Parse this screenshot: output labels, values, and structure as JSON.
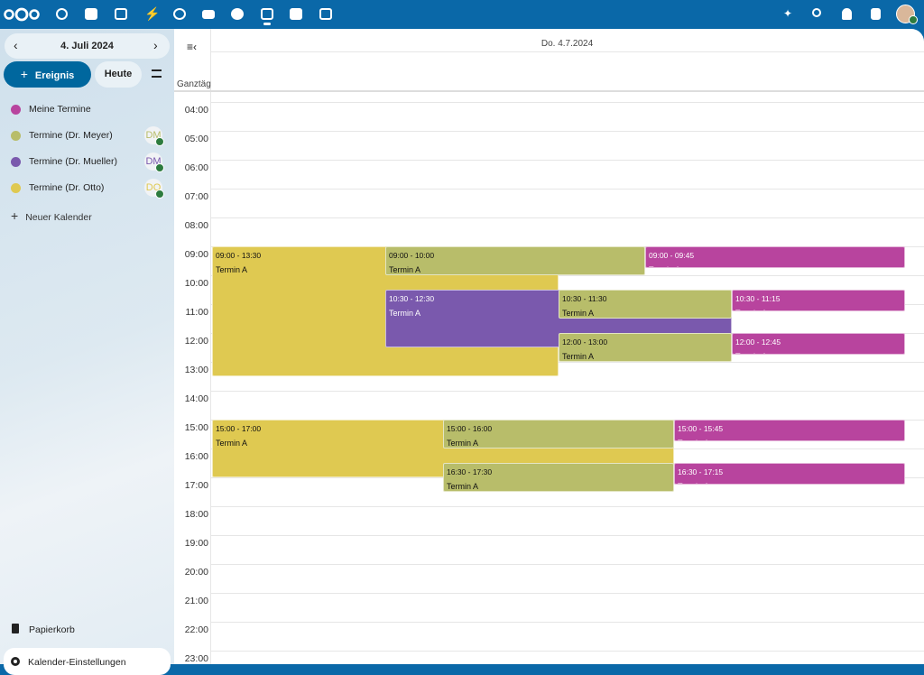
{
  "sidebar": {
    "date": "4. Juli 2024",
    "new_event": "Ereignis",
    "today": "Heute",
    "calendars": [
      {
        "name": "Meine Termine",
        "color": "#b8449e"
      },
      {
        "name": "Termine (Dr. Meyer)",
        "color": "#b8bd6a",
        "avatar": "DM"
      },
      {
        "name": "Termine (Dr. Mueller)",
        "color": "#7a59ad",
        "avatar": "DM"
      },
      {
        "name": "Termine (Dr. Otto)",
        "color": "#dfc951",
        "avatar": "DO"
      }
    ],
    "new_calendar": "Neuer Kalender",
    "trash": "Papierkorb",
    "settings": "Kalender-Einstellungen"
  },
  "grid": {
    "day_header": "Do. 4.7.2024",
    "all_day": "Ganztäg",
    "hours": [
      "04:00",
      "05:00",
      "06:00",
      "07:00",
      "08:00",
      "09:00",
      "10:00",
      "11:00",
      "12:00",
      "13:00",
      "14:00",
      "15:00",
      "16:00",
      "17:00",
      "18:00",
      "19:00",
      "20:00",
      "21:00",
      "22:00",
      "23:00"
    ]
  },
  "events": [
    {
      "time": "09:00 - 13:30",
      "title": "Termin A",
      "color": "#dfc951"
    },
    {
      "time": "09:00 - 10:00",
      "title": "Termin A",
      "color": "#b8bd6a"
    },
    {
      "time": "09:00 - 09:45",
      "title": "Termin A",
      "color": "#b8449e"
    },
    {
      "time": "10:30 - 12:30",
      "title": "Termin A",
      "color": "#7a59ad"
    },
    {
      "time": "10:30 - 11:30",
      "title": "Termin A",
      "color": "#b8bd6a"
    },
    {
      "time": "10:30 - 11:15",
      "title": "Termin A",
      "color": "#b8449e"
    },
    {
      "time": "12:00 - 13:00",
      "title": "Termin A",
      "color": "#b8bd6a"
    },
    {
      "time": "12:00 - 12:45",
      "title": "Termin A",
      "color": "#b8449e"
    },
    {
      "time": "15:00 - 17:00",
      "title": "Termin A",
      "color": "#dfc951"
    },
    {
      "time": "15:00 - 16:00",
      "title": "Termin A",
      "color": "#b8bd6a"
    },
    {
      "time": "15:00 - 15:45",
      "title": "Termin A",
      "color": "#b8449e"
    },
    {
      "time": "16:30 - 17:30",
      "title": "Termin A",
      "color": "#b8bd6a"
    },
    {
      "time": "16:30 - 17:15",
      "title": "Termin A",
      "color": "#b8449e"
    }
  ]
}
